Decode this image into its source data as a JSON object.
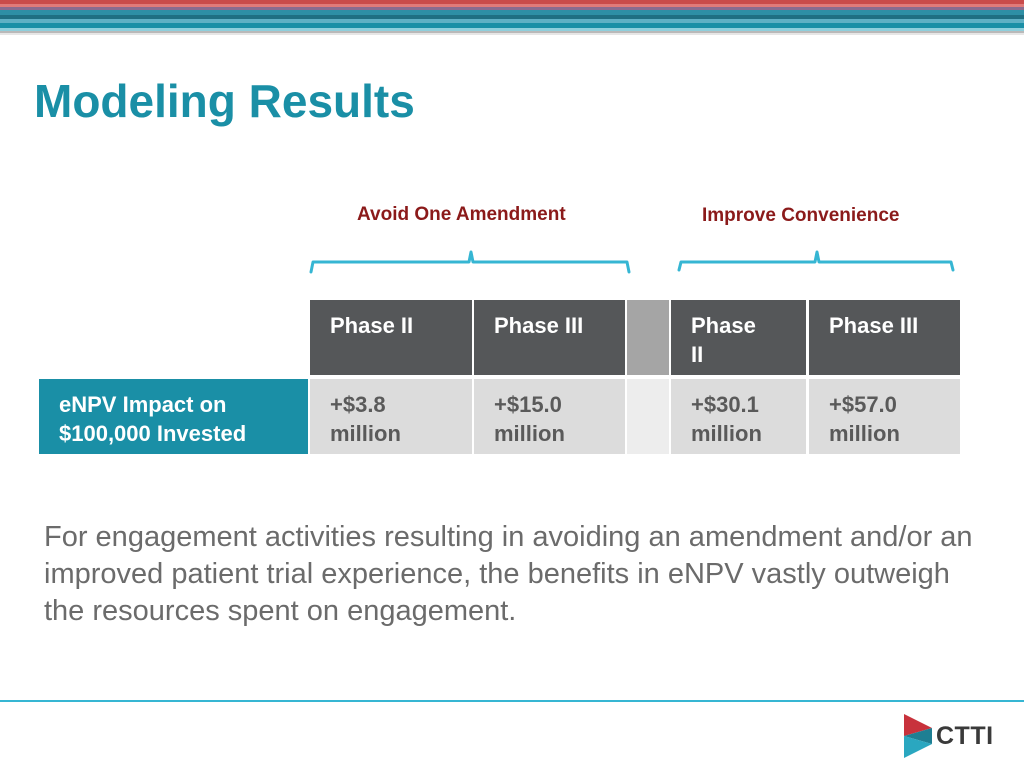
{
  "slide": {
    "title": "Modeling Results",
    "body": "For engagement activities resulting in avoiding an amendment and/or an improved patient trial experience, the benefits in eNPV vastly outweigh the resources spent on engagement."
  },
  "groups": {
    "avoid": "Avoid One Amendment",
    "improve": "Improve Convenience"
  },
  "table": {
    "row_label": "eNPV Impact on $100,000 Invested",
    "headers": [
      "Phase II",
      "Phase III",
      "Phase II",
      "Phase III"
    ],
    "values": [
      "+$3.8 million",
      "+$15.0 million",
      "+$30.1 million",
      "+$57.0 million"
    ]
  },
  "logo": {
    "text": "CTTI"
  },
  "colors": {
    "title": "#1a8fa6",
    "group_label": "#8b1a1a",
    "header_bg": "#555759",
    "value_bg": "#dcdcdc",
    "label_bg": "#1a8fa6",
    "brace": "#36b6d3"
  }
}
